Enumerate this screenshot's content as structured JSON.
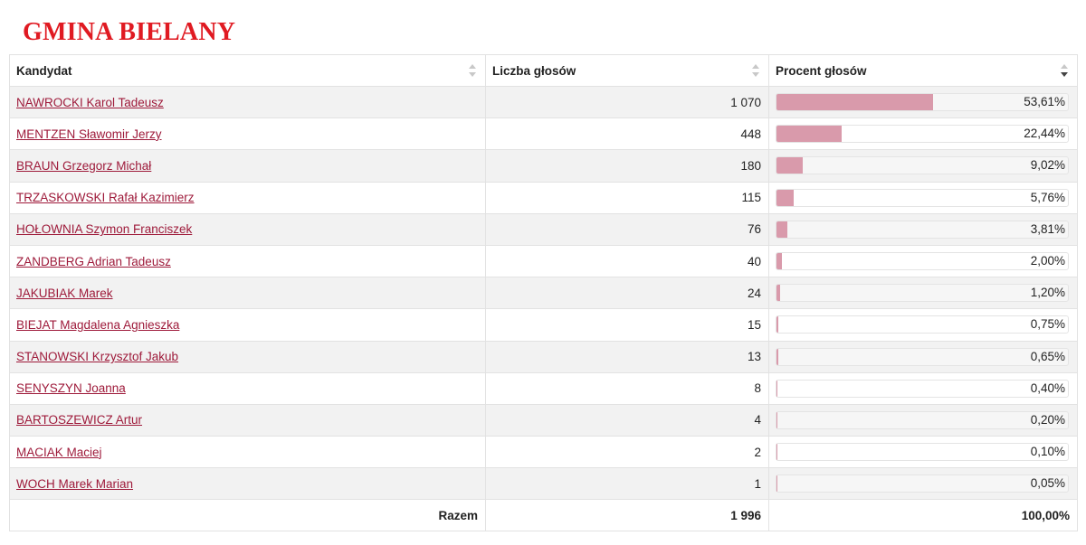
{
  "title": "GMINA BIELANY",
  "table": {
    "headers": {
      "candidate": "Kandydat",
      "votes": "Liczba głosów",
      "percent": "Procent głosów"
    },
    "sort": {
      "column": "percent",
      "direction": "desc"
    },
    "rows": [
      {
        "name": "NAWROCKI Karol Tadeusz",
        "votes": "1 070",
        "percent": "53,61%",
        "share": 53.61
      },
      {
        "name": "MENTZEN Sławomir Jerzy",
        "votes": "448",
        "percent": "22,44%",
        "share": 22.44
      },
      {
        "name": "BRAUN Grzegorz Michał",
        "votes": "180",
        "percent": "9,02%",
        "share": 9.02
      },
      {
        "name": "TRZASKOWSKI Rafał Kazimierz",
        "votes": "115",
        "percent": "5,76%",
        "share": 5.76
      },
      {
        "name": "HOŁOWNIA Szymon Franciszek",
        "votes": "76",
        "percent": "3,81%",
        "share": 3.81
      },
      {
        "name": "ZANDBERG Adrian Tadeusz",
        "votes": "40",
        "percent": "2,00%",
        "share": 2.0
      },
      {
        "name": "JAKUBIAK Marek",
        "votes": "24",
        "percent": "1,20%",
        "share": 1.2
      },
      {
        "name": "BIEJAT Magdalena Agnieszka",
        "votes": "15",
        "percent": "0,75%",
        "share": 0.75
      },
      {
        "name": "STANOWSKI Krzysztof Jakub",
        "votes": "13",
        "percent": "0,65%",
        "share": 0.65
      },
      {
        "name": "SENYSZYN Joanna",
        "votes": "8",
        "percent": "0,40%",
        "share": 0.4
      },
      {
        "name": "BARTOSZEWICZ Artur",
        "votes": "4",
        "percent": "0,20%",
        "share": 0.2
      },
      {
        "name": "MACIAK Maciej",
        "votes": "2",
        "percent": "0,10%",
        "share": 0.1
      },
      {
        "name": "WOCH Marek Marian",
        "votes": "1",
        "percent": "0,05%",
        "share": 0.05
      }
    ],
    "footer": {
      "label": "Razem",
      "votes": "1 996",
      "percent": "100,00%"
    }
  },
  "colors": {
    "title": "#e01a22",
    "link": "#9e1a3a",
    "bar": "#d99aab"
  }
}
